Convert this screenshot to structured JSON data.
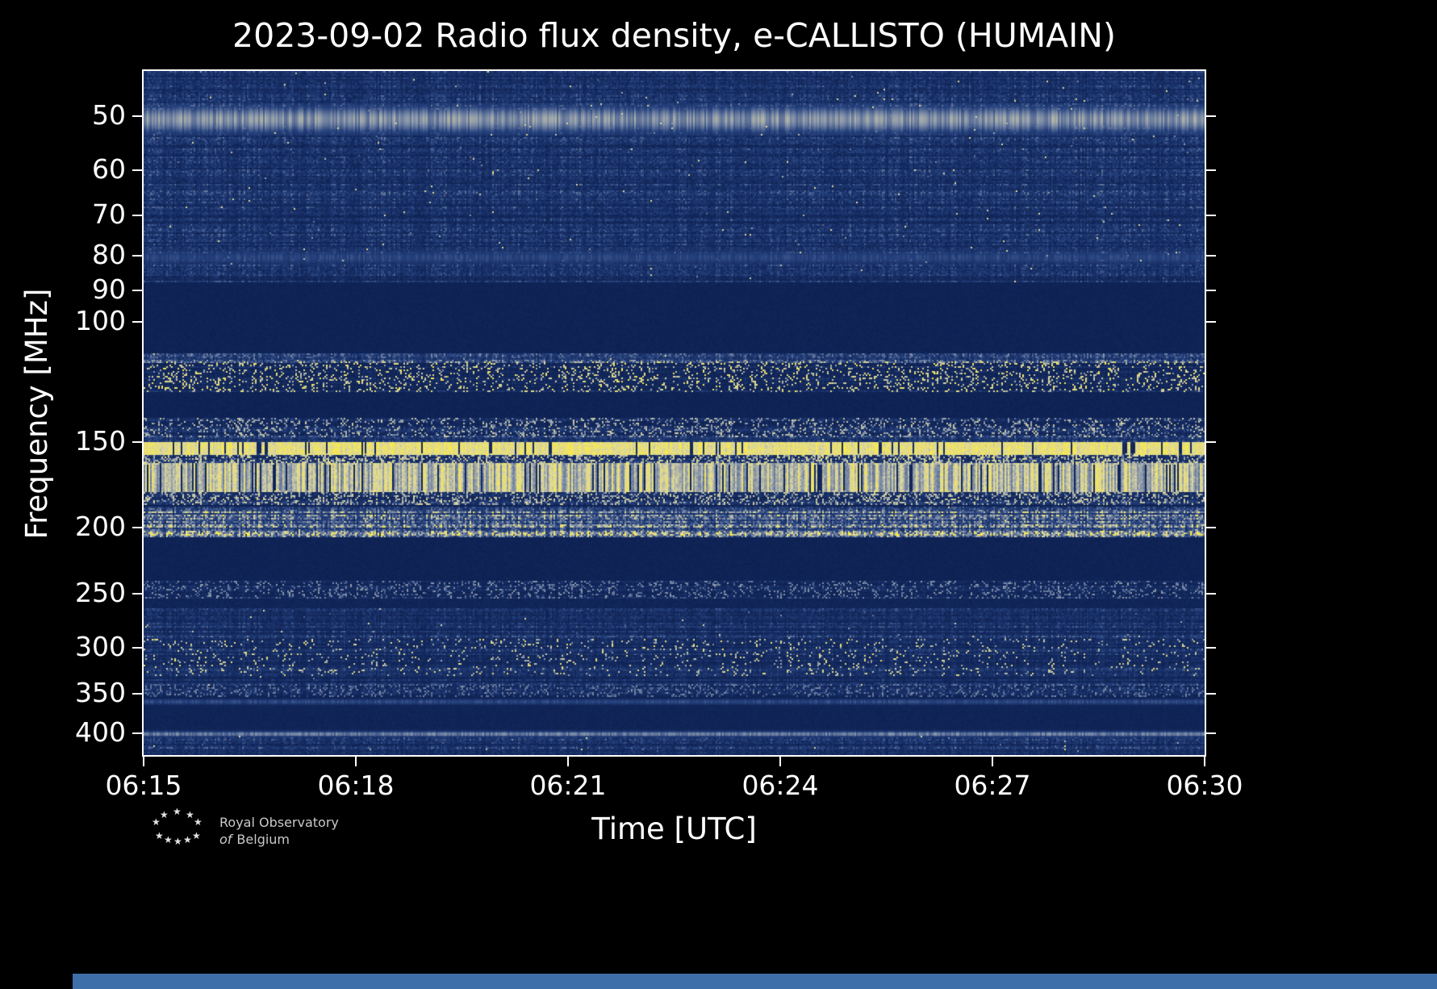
{
  "figure": {
    "title": "2023-09-02 Radio flux density, e-CALLISTO (HUMAIN)",
    "background_color": "#000000",
    "text_color": "#ffffff",
    "bottom_bar_color": "#3f6fa8"
  },
  "axes": {
    "xlabel": "Time [UTC]",
    "ylabel": "Frequency [MHz]",
    "x_ticks": [
      "06:15",
      "06:18",
      "06:21",
      "06:24",
      "06:27",
      "06:30"
    ],
    "y_ticks": [
      "50",
      "60",
      "70",
      "80",
      "90",
      "100",
      "150",
      "200",
      "250",
      "300",
      "350",
      "400"
    ]
  },
  "logo": {
    "icon": "stars-arc-icon",
    "star_glyph": "★",
    "line1": "Royal Observatory",
    "line2_prefix": "of",
    "line2_rest": "Belgium"
  },
  "chart_data": {
    "type": "heatmap",
    "title": "2023-09-02 Radio flux density, e-CALLISTO (HUMAIN)",
    "xlabel": "Time [UTC]",
    "ylabel": "Frequency [MHz]",
    "x_ticks": [
      "06:15",
      "06:18",
      "06:21",
      "06:24",
      "06:27",
      "06:30"
    ],
    "x_range": [
      "06:15",
      "06:30"
    ],
    "time_span_minutes": 15,
    "y_ticks": [
      50,
      60,
      70,
      80,
      90,
      100,
      150,
      200,
      250,
      300,
      350,
      400
    ],
    "y_scale": "log",
    "y_axis_direction": "low-frequency-at-top",
    "freq_range_mhz": [
      43,
      430
    ],
    "grid": false,
    "legend": false,
    "colormap_stops": [
      [
        0,
        "#0a1c4c"
      ],
      [
        0.3,
        "#26427e"
      ],
      [
        0.55,
        "#8290a8"
      ],
      [
        0.75,
        "#d8d4a4"
      ],
      [
        1,
        "#ffee3a"
      ]
    ],
    "bands": [
      {
        "f1": 43,
        "f2": 87,
        "kind": "noise",
        "level": 0.16,
        "label": "faint striped noise 43-87 MHz"
      },
      {
        "f1": 48.5,
        "f2": 52.5,
        "kind": "hline",
        "level": 0.55,
        "label": "bright continuous line ~50 MHz"
      },
      {
        "f1": 78.5,
        "f2": 82,
        "kind": "hline",
        "level": 0.3,
        "label": "faint line ~80 MHz"
      },
      {
        "f1": 87,
        "f2": 111,
        "kind": "flat",
        "level": 0.05,
        "label": "quiet dark region 87-111 MHz"
      },
      {
        "f1": 111,
        "f2": 114,
        "kind": "noise",
        "level": 0.22,
        "label": "pale noise strip ~112 MHz"
      },
      {
        "f1": 114,
        "f2": 126,
        "kind": "speckle",
        "base": 0.12,
        "level": 0.95,
        "density": 0.16,
        "label": "speckled yellow RFI band 115-125 MHz"
      },
      {
        "f1": 126,
        "f2": 138,
        "kind": "flat",
        "level": 0.05,
        "label": "quiet region 126-138 MHz"
      },
      {
        "f1": 138,
        "f2": 147,
        "kind": "speckle",
        "base": 0.14,
        "level": 0.75,
        "density": 0.22,
        "label": "speckle band ~140-147 MHz"
      },
      {
        "f1": 147,
        "f2": 150,
        "kind": "noise",
        "level": 0.18,
        "label": "noise strip ~148 MHz"
      },
      {
        "f1": 150,
        "f2": 156,
        "kind": "band",
        "level": 0.95,
        "gap": 0.07,
        "colvar": 0.15,
        "label": "solid bright yellow band 150-156 MHz"
      },
      {
        "f1": 156,
        "f2": 161,
        "kind": "speckle",
        "base": 0.18,
        "level": 0.85,
        "density": 0.35,
        "label": "dense speckle 156-161 MHz"
      },
      {
        "f1": 161,
        "f2": 176,
        "kind": "band",
        "level": 0.92,
        "gap": 0.1,
        "colvar": 0.45,
        "label": "strong bright yellow band 161-176 MHz with vertical structure"
      },
      {
        "f1": 176,
        "f2": 184,
        "kind": "speckle",
        "base": 0.16,
        "level": 0.8,
        "density": 0.3,
        "label": "speckle band 176-184 MHz"
      },
      {
        "f1": 186,
        "f2": 206,
        "kind": "noise",
        "level": 0.4,
        "label": "grey noisy band ~190-205 MHz"
      },
      {
        "f1": 206,
        "f2": 239,
        "kind": "flat",
        "level": 0.05,
        "label": "quiet dark region 206-239 MHz"
      },
      {
        "f1": 239,
        "f2": 253,
        "kind": "speckle",
        "base": 0.12,
        "level": 0.6,
        "density": 0.2,
        "label": "thin speckle band ~250 MHz"
      },
      {
        "f1": 253,
        "f2": 263,
        "kind": "flat",
        "level": 0.07,
        "label": "quiet strip 253-263 MHz"
      },
      {
        "f1": 263,
        "f2": 291,
        "kind": "noise",
        "level": 0.17,
        "label": "striped noise 263-291 MHz"
      },
      {
        "f1": 291,
        "f2": 327,
        "kind": "speckle",
        "base": 0.15,
        "level": 0.9,
        "density": 0.07,
        "label": "sparse yellow speckles ~295-325 MHz"
      },
      {
        "f1": 327,
        "f2": 339,
        "kind": "noise",
        "level": 0.15,
        "label": "noise 327-339 MHz"
      },
      {
        "f1": 339,
        "f2": 351,
        "kind": "speckle",
        "base": 0.13,
        "level": 0.55,
        "density": 0.2,
        "label": "speckle line ~345 MHz"
      },
      {
        "f1": 356,
        "f2": 362,
        "kind": "hline",
        "level": 0.32,
        "label": "faint line ~360 MHz"
      },
      {
        "f1": 362,
        "f2": 396,
        "kind": "flat",
        "level": 0.06,
        "label": "quiet region 362-396 MHz"
      },
      {
        "f1": 396,
        "f2": 402,
        "kind": "hline",
        "level": 0.5,
        "label": "grey continuous line ~400 MHz"
      },
      {
        "f1": 403,
        "f2": 430,
        "kind": "noise",
        "level": 0.17,
        "label": "striped noise below 430 MHz"
      }
    ]
  }
}
